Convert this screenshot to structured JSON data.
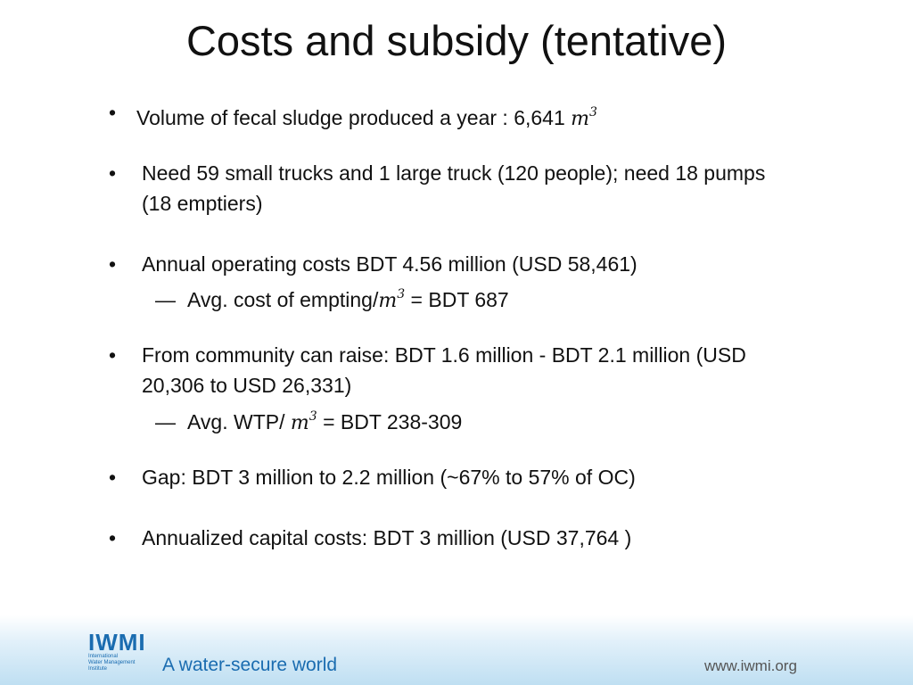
{
  "title": "Costs and subsidy (tentative)",
  "bullets": {
    "b1": {
      "text": "Volume of fecal sludge produced a year : 6,641 ",
      "unit_base": "m",
      "unit_exp": "3"
    },
    "b2": {
      "line1": "Need 59 small trucks and 1 large truck (120 people); need 18 pumps",
      "line2": "(18 emptiers)"
    },
    "b3": {
      "text": "Annual operating costs BDT 4.56 million (USD 58,461)",
      "sub_pre": "Avg. cost of empting/",
      "sub_unit_base": "m",
      "sub_unit_exp": "3",
      "sub_post": " = BDT 687"
    },
    "b4": {
      "line1": "From community can raise: BDT 1.6 million - BDT 2.1 million (USD",
      "line2": "20,306 to USD 26,331)",
      "sub_pre": "Avg. WTP/ ",
      "sub_unit_base": "m",
      "sub_unit_exp": "3",
      "sub_post": " = BDT 238-309"
    },
    "b5": {
      "text": "Gap: BDT 3 million to 2.2 million (~67% to 57% of OC)"
    },
    "b6": {
      "text": "Annualized capital costs: BDT 3 million (USD 37,764 )"
    }
  },
  "bullet_glyph": "•",
  "sub_dash": "—",
  "footer": {
    "logo_word": "IWMI",
    "logo_sub1": "International",
    "logo_sub2": "Water Management",
    "logo_sub3": "Institute",
    "tagline": "A water-secure world",
    "website": "www.iwmi.org"
  },
  "colors": {
    "brand": "#1a6cb0",
    "text": "#111111"
  }
}
